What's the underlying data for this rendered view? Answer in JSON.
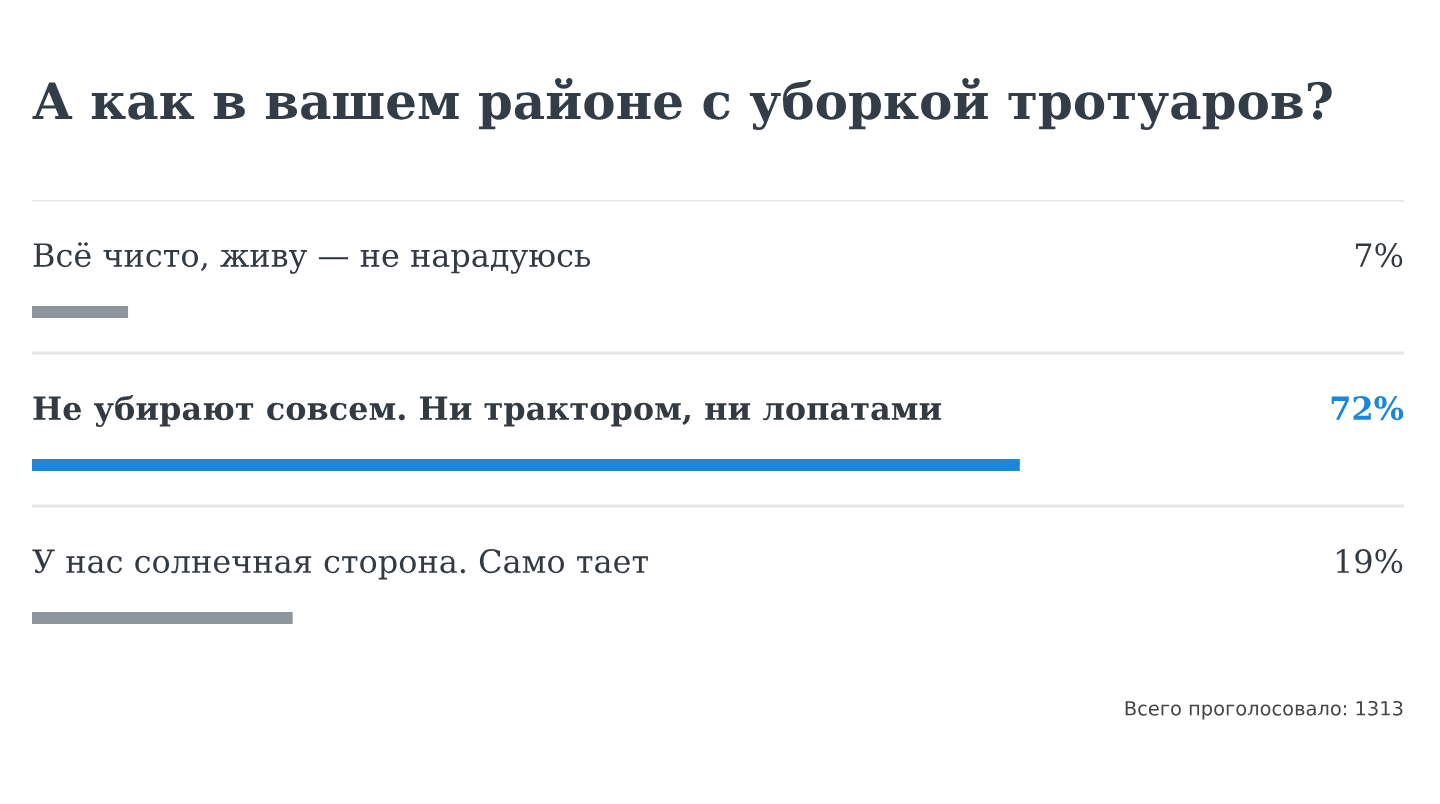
{
  "chart_data": {
    "type": "bar",
    "orientation": "horizontal",
    "title": "А как в вашем районе с уборкой тротуаров?",
    "categories": [
      "Всё чисто, живу — не нарадуюсь",
      "Не убирают совсем. Ни трактором, ни лопатами",
      "У нас солнечная сторона. Само тает"
    ],
    "values": [
      7,
      72,
      19
    ],
    "colors": [
      "#8d959d",
      "#1a86dc",
      "#8d959d"
    ],
    "value_labels": [
      "7%",
      "72%",
      "19%"
    ],
    "xlim": [
      0,
      100
    ],
    "annotations": [
      "Всего проголосовало: 1313"
    ]
  }
}
